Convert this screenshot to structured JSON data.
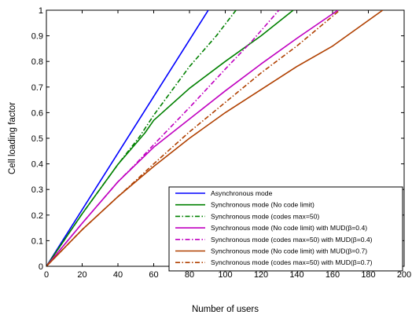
{
  "chart_data": {
    "type": "line",
    "title": "",
    "xlabel": "Number of users",
    "ylabel": "Cell loading factor",
    "xlim": [
      0,
      200
    ],
    "ylim": [
      0,
      1
    ],
    "xticks": [
      0,
      20,
      40,
      60,
      80,
      100,
      120,
      140,
      160,
      180,
      200
    ],
    "yticks": [
      0,
      0.1,
      0.2,
      0.3,
      0.4,
      0.5,
      0.6,
      0.7,
      0.8,
      0.9,
      1
    ],
    "xtick_labels": [
      "0",
      "20",
      "40",
      "60",
      "80",
      "100",
      "120",
      "140",
      "160",
      "180",
      "200"
    ],
    "ytick_labels": [
      "0",
      "0.1",
      "0.2",
      "0.3",
      "0.4",
      "0.5",
      "0.6",
      "0.7",
      "0.8",
      "0.9",
      "1"
    ],
    "grid": false,
    "legend_position": "bottom-right",
    "series": [
      {
        "name": "Asynchronous mode",
        "color": "#0000ff",
        "style": "solid",
        "x": [
          0,
          20,
          40,
          60,
          80,
          90.5
        ],
        "y": [
          0,
          0.221,
          0.442,
          0.663,
          0.884,
          1.0
        ]
      },
      {
        "name": "Synchronous mode (No code limit)",
        "color": "#008000",
        "style": "solid",
        "x": [
          0,
          20,
          40,
          55,
          60,
          80,
          100,
          120,
          138
        ],
        "y": [
          0,
          0.205,
          0.398,
          0.52,
          0.57,
          0.695,
          0.8,
          0.9,
          1.0
        ]
      },
      {
        "name": "Synchronous mode (codes max=50)",
        "color": "#008000",
        "style": "dashdot",
        "x": [
          0,
          20,
          40,
          52,
          60,
          80,
          95,
          106
        ],
        "y": [
          0,
          0.205,
          0.398,
          0.505,
          0.59,
          0.78,
          0.9,
          1.0
        ]
      },
      {
        "name": "Synchronous mode (No code limit) with MUD(β=0.4)",
        "color": "#c000c0",
        "style": "solid",
        "x": [
          0,
          20,
          40,
          60,
          80,
          100,
          120,
          140,
          163
        ],
        "y": [
          0,
          0.168,
          0.33,
          0.465,
          0.575,
          0.685,
          0.79,
          0.89,
          1.0
        ]
      },
      {
        "name": "Synchronous mode (codes max=50) with MUD(β=0.4)",
        "color": "#c000c0",
        "style": "dashdot",
        "x": [
          0,
          20,
          40,
          50,
          60,
          80,
          100,
          115,
          130
        ],
        "y": [
          0,
          0.168,
          0.33,
          0.4,
          0.475,
          0.62,
          0.77,
          0.88,
          1.0
        ]
      },
      {
        "name": "Synchronous mode (No code limit) with MUD(β=0.7)",
        "color": "#b04000",
        "style": "solid",
        "x": [
          0,
          20,
          40,
          60,
          80,
          100,
          120,
          140,
          160,
          188
        ],
        "y": [
          0,
          0.143,
          0.272,
          0.39,
          0.5,
          0.6,
          0.69,
          0.78,
          0.86,
          1.0
        ]
      },
      {
        "name": "Synchronous mode (codes max=50) with MUD(β=0.7)",
        "color": "#b04000",
        "style": "dashdot",
        "x": [
          0,
          20,
          40,
          50,
          60,
          80,
          100,
          120,
          140,
          164
        ],
        "y": [
          0,
          0.143,
          0.272,
          0.335,
          0.4,
          0.525,
          0.64,
          0.755,
          0.86,
          1.0
        ]
      }
    ]
  }
}
